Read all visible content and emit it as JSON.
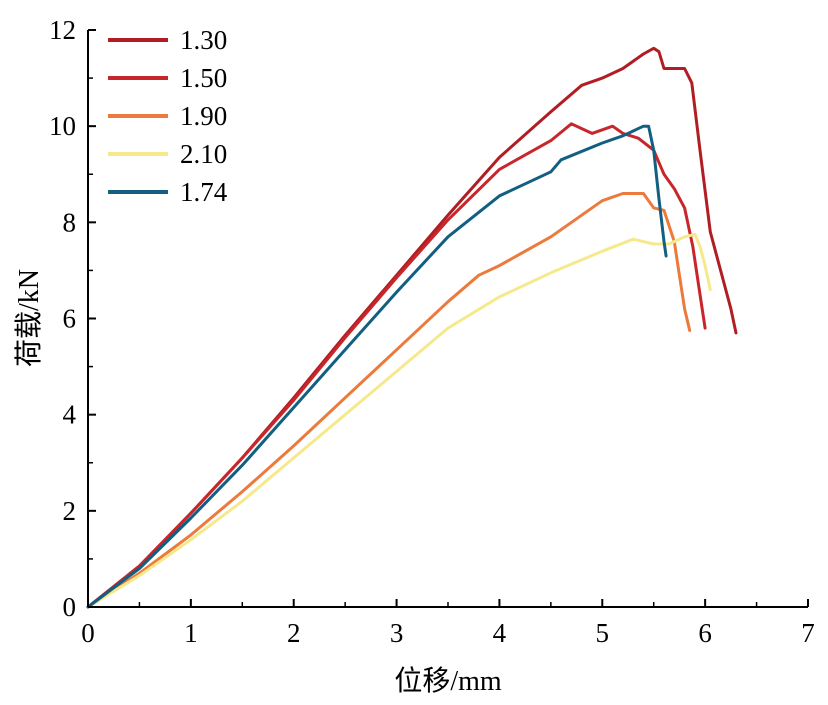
{
  "chart_data": {
    "type": "line",
    "xlabel": "位移/mm",
    "ylabel": "荷载/kN",
    "xlim": [
      0,
      7
    ],
    "ylim": [
      0,
      12
    ],
    "xticks": [
      0,
      1,
      2,
      3,
      4,
      5,
      6,
      7
    ],
    "yticks": [
      0,
      2,
      4,
      6,
      8,
      10,
      12
    ],
    "grid": false,
    "legend_position": "top-left",
    "series": [
      {
        "name": "1.30",
        "color": "#b01e23",
        "x": [
          0,
          0.5,
          1,
          1.5,
          2,
          2.5,
          3,
          3.5,
          4,
          4.5,
          4.8,
          5.0,
          5.2,
          5.4,
          5.5,
          5.55,
          5.6,
          5.7,
          5.8,
          5.87,
          5.95,
          6.05,
          6.15,
          6.25,
          6.3
        ],
        "y": [
          0,
          0.85,
          1.95,
          3.1,
          4.35,
          5.65,
          6.9,
          8.15,
          9.35,
          10.3,
          10.85,
          11.0,
          11.2,
          11.5,
          11.62,
          11.55,
          11.2,
          11.2,
          11.2,
          10.9,
          9.5,
          7.8,
          7.0,
          6.2,
          5.7
        ]
      },
      {
        "name": "1.50",
        "color": "#c8262a",
        "x": [
          0,
          0.5,
          1,
          1.5,
          2,
          2.5,
          3,
          3.5,
          4,
          4.5,
          4.7,
          4.9,
          5.1,
          5.2,
          5.35,
          5.5,
          5.6,
          5.7,
          5.8,
          5.88,
          5.95,
          6.0
        ],
        "y": [
          0,
          0.85,
          1.95,
          3.1,
          4.3,
          5.6,
          6.85,
          8.05,
          9.1,
          9.7,
          10.05,
          9.85,
          10.0,
          9.85,
          9.75,
          9.5,
          9.0,
          8.7,
          8.3,
          7.5,
          6.5,
          5.8
        ]
      },
      {
        "name": "1.90",
        "color": "#ec7a3c",
        "x": [
          0,
          0.5,
          1,
          1.5,
          2,
          2.5,
          3,
          3.5,
          3.8,
          4.0,
          4.5,
          5.0,
          5.2,
          5.4,
          5.5,
          5.6,
          5.7,
          5.75,
          5.8,
          5.85
        ],
        "y": [
          0,
          0.7,
          1.5,
          2.4,
          3.35,
          4.35,
          5.35,
          6.35,
          6.9,
          7.1,
          7.7,
          8.45,
          8.6,
          8.6,
          8.3,
          8.25,
          7.6,
          6.9,
          6.2,
          5.75
        ]
      },
      {
        "name": "2.10",
        "color": "#f6e98c",
        "x": [
          0,
          0.5,
          1,
          1.5,
          2,
          2.5,
          3,
          3.5,
          4,
          4.5,
          5,
          5.3,
          5.5,
          5.65,
          5.8,
          5.9,
          5.95,
          6.0,
          6.05
        ],
        "y": [
          0,
          0.65,
          1.4,
          2.2,
          3.1,
          4.0,
          4.9,
          5.8,
          6.45,
          6.95,
          7.4,
          7.65,
          7.55,
          7.55,
          7.7,
          7.75,
          7.5,
          7.1,
          6.6
        ]
      },
      {
        "name": "1.74",
        "color": "#125f82",
        "x": [
          0,
          0.5,
          1,
          1.5,
          2,
          2.5,
          3,
          3.5,
          4,
          4.5,
          4.6,
          5.0,
          5.2,
          5.4,
          5.45,
          5.5,
          5.55,
          5.6,
          5.62
        ],
        "y": [
          0,
          0.8,
          1.85,
          2.95,
          4.15,
          5.35,
          6.55,
          7.7,
          8.55,
          9.05,
          9.3,
          9.65,
          9.8,
          10.0,
          10.0,
          9.5,
          8.5,
          7.6,
          7.3
        ]
      }
    ]
  }
}
